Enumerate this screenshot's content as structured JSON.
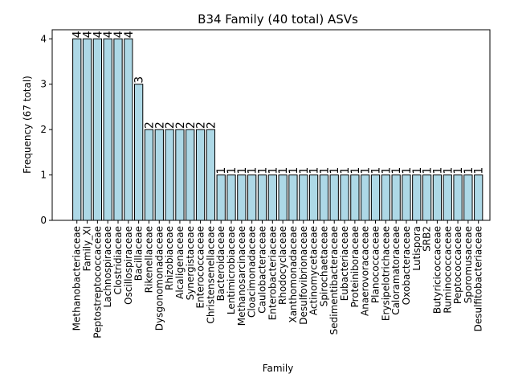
{
  "chart_data": {
    "type": "bar",
    "title": "B34 Family (40 total) ASVs",
    "xlabel": "Family",
    "ylabel": "Frequency (67 total)",
    "ylim": [
      0,
      4.2
    ],
    "yticks": [
      0,
      1,
      2,
      3,
      4
    ],
    "grid": false,
    "categories": [
      "Methanobacteriaceae",
      "Family_XI",
      "Peptostreptococcaceae",
      "Lachnospiraceae",
      "Clostridiaceae",
      "Oscillospiraceae",
      "Bacillaceae",
      "Rikenellaceae",
      "Dysgonomonadaceae",
      "Rhizobiaceae",
      "Alcaligenaceae",
      "Synergistaceae",
      "Enterococcaceae",
      "Christensenellaceae",
      "Bacteroidaceae",
      "Lentimicrobiaceae",
      "Methanosarcinaceae",
      "Cloacimonadaceae",
      "Caulobacteraceae",
      "Enterobacteriaceae",
      "Rhodocyclaceae",
      "Xanthomonadaceae",
      "Desulfovibrionaceae",
      "Actinomycetaceae",
      "Spirochaetaceae",
      "Sedimentibacteraceae",
      "Eubacteriaceae",
      "Proteiniboraceae",
      "Anaerovoracaceae",
      "Planococcaceae",
      "Erysipelotrichaceae",
      "Caloramatoraceae",
      "Oxobacteraceae",
      "Lutispora",
      "SRB2",
      "Butyricicoccaceae",
      "Ruminococcaceae",
      "Peptococcaceae",
      "Sporomusaceae",
      "Desulfitobacteriaceae"
    ],
    "values": [
      4,
      4,
      4,
      4,
      4,
      4,
      3,
      2,
      2,
      2,
      2,
      2,
      2,
      2,
      1,
      1,
      1,
      1,
      1,
      1,
      1,
      1,
      1,
      1,
      1,
      1,
      1,
      1,
      1,
      1,
      1,
      1,
      1,
      1,
      1,
      1,
      1,
      1,
      1,
      1
    ],
    "bar_color": "#add8e6",
    "edge_color": "#000000"
  }
}
